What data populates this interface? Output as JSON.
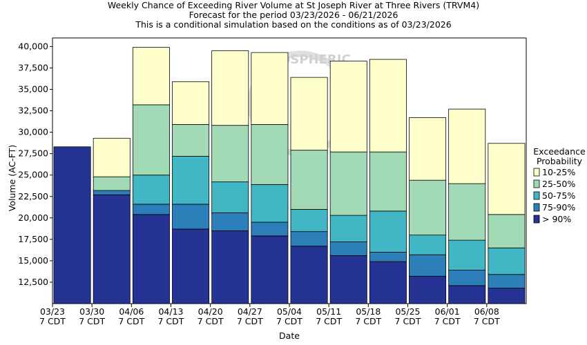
{
  "chart_data": {
    "type": "bar",
    "stacked": true,
    "title_lines": [
      "Weekly Chance of Exceeding River Volume at St Joseph River at Three Rivers (TRVM4)",
      "Forecast for the period 03/23/2026 - 06/21/2026",
      "This is a conditional simulation based on the conditions as of 03/23/2026"
    ],
    "xlabel": "Date",
    "ylabel": "Volume (AC-FT)",
    "ylim": [
      10000,
      41000
    ],
    "yticks": [
      12500,
      15000,
      17500,
      20000,
      22500,
      25000,
      27500,
      30000,
      32500,
      35000,
      37500,
      40000
    ],
    "ytick_labels": [
      "12,500",
      "15,000",
      "17,500",
      "20,000",
      "22,500",
      "25,000",
      "27,500",
      "30,000",
      "32,500",
      "35,000",
      "37,500",
      "40,000"
    ],
    "xtick_labels": [
      [
        "03/23",
        "7 CDT"
      ],
      [
        "03/30",
        "7 CDT"
      ],
      [
        "04/06",
        "7 CDT"
      ],
      [
        "04/13",
        "7 CDT"
      ],
      [
        "04/20",
        "7 CDT"
      ],
      [
        "04/27",
        "7 CDT"
      ],
      [
        "05/04",
        "7 CDT"
      ],
      [
        "05/11",
        "7 CDT"
      ],
      [
        "05/18",
        "7 CDT"
      ],
      [
        "05/25",
        "7 CDT"
      ],
      [
        "06/01",
        "7 CDT"
      ],
      [
        "06/08",
        "7 CDT"
      ]
    ],
    "weeks": [
      "03/23",
      "03/30",
      "04/06",
      "04/13",
      "04/20",
      "04/27",
      "05/04",
      "05/11",
      "05/18",
      "05/25",
      "06/01",
      "06/08"
    ],
    "bar_levels": [
      {
        "gt90": 28300,
        "p75_90": 28300,
        "p50_75": 28300,
        "p25_50": 28300,
        "p10_25": 28300
      },
      {
        "gt90": 22700,
        "p75_90": 23200,
        "p50_75": 23200,
        "p25_50": 24800,
        "p10_25": 29300
      },
      {
        "gt90": 20400,
        "p75_90": 21600,
        "p50_75": 25000,
        "p25_50": 33200,
        "p10_25": 39900
      },
      {
        "gt90": 18700,
        "p75_90": 21600,
        "p50_75": 27200,
        "p25_50": 30900,
        "p10_25": 35900
      },
      {
        "gt90": 18500,
        "p75_90": 20600,
        "p50_75": 24200,
        "p25_50": 30800,
        "p10_25": 39500
      },
      {
        "gt90": 17900,
        "p75_90": 19500,
        "p50_75": 23900,
        "p25_50": 30900,
        "p10_25": 39300
      },
      {
        "gt90": 16700,
        "p75_90": 18400,
        "p50_75": 21000,
        "p25_50": 27900,
        "p10_25": 36400
      },
      {
        "gt90": 15600,
        "p75_90": 17200,
        "p50_75": 20300,
        "p25_50": 27700,
        "p10_25": 38300
      },
      {
        "gt90": 14900,
        "p75_90": 16000,
        "p50_75": 20800,
        "p25_50": 27700,
        "p10_25": 38500
      },
      {
        "gt90": 13200,
        "p75_90": 15700,
        "p50_75": 18000,
        "p25_50": 24400,
        "p10_25": 31700
      },
      {
        "gt90": 12100,
        "p75_90": 13900,
        "p50_75": 17400,
        "p25_50": 24000,
        "p10_25": 32700
      },
      {
        "gt90": 11800,
        "p75_90": 13400,
        "p50_75": 16500,
        "p25_50": 20400,
        "p10_25": 28700
      }
    ],
    "legend": {
      "title_lines": [
        "Exceedance",
        "Probability"
      ],
      "placement": "right",
      "entries": [
        {
          "key": "p10_25",
          "label": "10-25%",
          "color": "#ffffcc"
        },
        {
          "key": "p25_50",
          "label": "25-50%",
          "color": "#a1dab4"
        },
        {
          "key": "p50_75",
          "label": "50-75%",
          "color": "#41b6c4"
        },
        {
          "key": "p75_90",
          "label": "75-90%",
          "color": "#2c7fb8"
        },
        {
          "key": "gt90",
          "label": "> 90%",
          "color": "#253494"
        }
      ]
    },
    "watermark_text": "ATMOSPHERIC"
  }
}
